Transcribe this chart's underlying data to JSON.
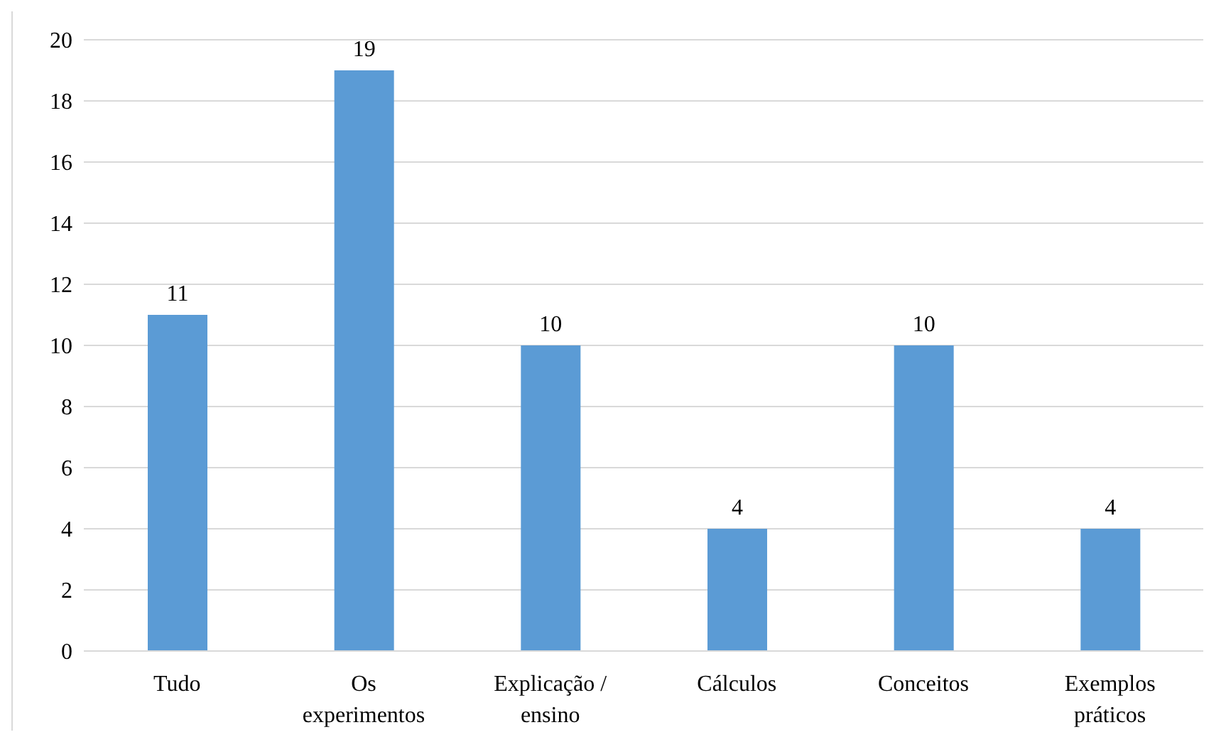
{
  "chart_data": {
    "type": "bar",
    "categories": [
      "Tudo",
      "Os experimentos",
      "Explicação / ensino",
      "Cálculos",
      "Conceitos",
      "Exemplos práticos"
    ],
    "values": [
      11,
      19,
      10,
      4,
      10,
      4
    ],
    "color": "#5b9bd5",
    "ylim": [
      0,
      20
    ],
    "yticks": [
      0,
      2,
      4,
      6,
      8,
      10,
      12,
      14,
      16,
      18,
      20
    ],
    "grid": "y",
    "data_labels": true
  }
}
